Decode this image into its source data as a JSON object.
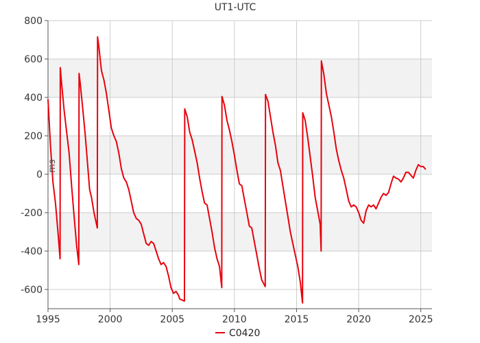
{
  "chart_data": {
    "type": "line",
    "title": "UT1-UTC",
    "ylabel": "ms",
    "xlabel": "",
    "xlim": [
      1995,
      2025.9
    ],
    "ylim": [
      -700,
      800
    ],
    "xticks": [
      1995,
      2000,
      2005,
      2010,
      2015,
      2020,
      2025
    ],
    "yticks": [
      -600,
      -400,
      -200,
      0,
      200,
      400,
      600,
      800
    ],
    "xtick_labels": [
      "1995",
      "2000",
      "2005",
      "2010",
      "2015",
      "2020",
      "2025"
    ],
    "ytick_labels": [
      "-600",
      "-400",
      "-200",
      "0",
      "200",
      "400",
      "600",
      "800"
    ],
    "grid": true,
    "shaded_bands": [
      [
        400,
        600
      ],
      [
        0,
        200
      ],
      [
        -400,
        -200
      ]
    ],
    "legend_position": "bottom-center",
    "colors": {
      "series": "#e8000b",
      "band": "#f2f2f2",
      "grid": "#cccccc",
      "axis": "#555555"
    },
    "series": [
      {
        "name": "C0420",
        "points": [
          [
            1995.0,
            390
          ],
          [
            1995.2,
            150
          ],
          [
            1995.4,
            -40
          ],
          [
            1995.6,
            -150
          ],
          [
            1995.8,
            -300
          ],
          [
            1995.97,
            -440
          ],
          [
            1995.99,
            555
          ],
          [
            1996.1,
            470
          ],
          [
            1996.3,
            330
          ],
          [
            1996.5,
            220
          ],
          [
            1996.7,
            110
          ],
          [
            1996.9,
            -60
          ],
          [
            1997.1,
            -220
          ],
          [
            1997.3,
            -370
          ],
          [
            1997.48,
            -470
          ],
          [
            1997.5,
            525
          ],
          [
            1997.6,
            470
          ],
          [
            1997.8,
            340
          ],
          [
            1998.0,
            200
          ],
          [
            1998.2,
            40
          ],
          [
            1998.35,
            -80
          ],
          [
            1998.5,
            -120
          ],
          [
            1998.7,
            -200
          ],
          [
            1998.97,
            -280
          ],
          [
            1998.99,
            715
          ],
          [
            1999.1,
            660
          ],
          [
            1999.3,
            540
          ],
          [
            1999.5,
            490
          ],
          [
            1999.7,
            420
          ],
          [
            1999.9,
            330
          ],
          [
            2000.1,
            240
          ],
          [
            2000.3,
            200
          ],
          [
            2000.5,
            170
          ],
          [
            2000.7,
            110
          ],
          [
            2000.9,
            30
          ],
          [
            2001.1,
            -20
          ],
          [
            2001.3,
            -40
          ],
          [
            2001.5,
            -80
          ],
          [
            2001.7,
            -140
          ],
          [
            2001.9,
            -200
          ],
          [
            2002.1,
            -230
          ],
          [
            2002.3,
            -240
          ],
          [
            2002.5,
            -260
          ],
          [
            2002.7,
            -310
          ],
          [
            2002.9,
            -360
          ],
          [
            2003.1,
            -370
          ],
          [
            2003.3,
            -350
          ],
          [
            2003.5,
            -360
          ],
          [
            2003.7,
            -400
          ],
          [
            2003.9,
            -440
          ],
          [
            2004.1,
            -470
          ],
          [
            2004.3,
            -460
          ],
          [
            2004.5,
            -480
          ],
          [
            2004.7,
            -530
          ],
          [
            2004.9,
            -590
          ],
          [
            2005.1,
            -620
          ],
          [
            2005.3,
            -610
          ],
          [
            2005.5,
            -630
          ],
          [
            2005.6,
            -650
          ],
          [
            2005.98,
            -660
          ],
          [
            2006.0,
            340
          ],
          [
            2006.2,
            300
          ],
          [
            2006.4,
            220
          ],
          [
            2006.6,
            180
          ],
          [
            2006.8,
            120
          ],
          [
            2007.0,
            60
          ],
          [
            2007.2,
            -20
          ],
          [
            2007.4,
            -90
          ],
          [
            2007.6,
            -150
          ],
          [
            2007.8,
            -160
          ],
          [
            2008.0,
            -230
          ],
          [
            2008.2,
            -300
          ],
          [
            2008.4,
            -380
          ],
          [
            2008.6,
            -440
          ],
          [
            2008.8,
            -480
          ],
          [
            2008.98,
            -590
          ],
          [
            2009.0,
            405
          ],
          [
            2009.2,
            360
          ],
          [
            2009.4,
            280
          ],
          [
            2009.6,
            230
          ],
          [
            2009.8,
            170
          ],
          [
            2010.0,
            100
          ],
          [
            2010.2,
            20
          ],
          [
            2010.4,
            -50
          ],
          [
            2010.6,
            -60
          ],
          [
            2010.8,
            -130
          ],
          [
            2011.0,
            -200
          ],
          [
            2011.2,
            -270
          ],
          [
            2011.4,
            -280
          ],
          [
            2011.6,
            -350
          ],
          [
            2011.8,
            -420
          ],
          [
            2012.0,
            -490
          ],
          [
            2012.2,
            -550
          ],
          [
            2012.48,
            -585
          ],
          [
            2012.5,
            415
          ],
          [
            2012.7,
            380
          ],
          [
            2012.9,
            300
          ],
          [
            2013.1,
            220
          ],
          [
            2013.3,
            150
          ],
          [
            2013.5,
            60
          ],
          [
            2013.7,
            20
          ],
          [
            2013.9,
            -60
          ],
          [
            2014.1,
            -140
          ],
          [
            2014.3,
            -220
          ],
          [
            2014.5,
            -300
          ],
          [
            2014.7,
            -360
          ],
          [
            2014.9,
            -420
          ],
          [
            2015.1,
            -480
          ],
          [
            2015.3,
            -560
          ],
          [
            2015.48,
            -670
          ],
          [
            2015.5,
            320
          ],
          [
            2015.7,
            280
          ],
          [
            2015.9,
            190
          ],
          [
            2016.1,
            90
          ],
          [
            2016.3,
            -10
          ],
          [
            2016.5,
            -120
          ],
          [
            2016.7,
            -190
          ],
          [
            2016.9,
            -260
          ],
          [
            2016.98,
            -400
          ],
          [
            2017.0,
            590
          ],
          [
            2017.2,
            520
          ],
          [
            2017.4,
            420
          ],
          [
            2017.6,
            360
          ],
          [
            2017.8,
            300
          ],
          [
            2018.0,
            220
          ],
          [
            2018.2,
            130
          ],
          [
            2018.4,
            70
          ],
          [
            2018.6,
            20
          ],
          [
            2018.8,
            -20
          ],
          [
            2019.0,
            -80
          ],
          [
            2019.2,
            -140
          ],
          [
            2019.4,
            -170
          ],
          [
            2019.6,
            -160
          ],
          [
            2019.8,
            -170
          ],
          [
            2020.0,
            -200
          ],
          [
            2020.2,
            -240
          ],
          [
            2020.4,
            -255
          ],
          [
            2020.6,
            -190
          ],
          [
            2020.8,
            -160
          ],
          [
            2021.0,
            -170
          ],
          [
            2021.2,
            -160
          ],
          [
            2021.4,
            -180
          ],
          [
            2021.6,
            -150
          ],
          [
            2021.8,
            -120
          ],
          [
            2022.0,
            -100
          ],
          [
            2022.2,
            -110
          ],
          [
            2022.4,
            -95
          ],
          [
            2022.6,
            -50
          ],
          [
            2022.8,
            -10
          ],
          [
            2023.0,
            -20
          ],
          [
            2023.2,
            -25
          ],
          [
            2023.4,
            -40
          ],
          [
            2023.6,
            -20
          ],
          [
            2023.8,
            10
          ],
          [
            2024.0,
            10
          ],
          [
            2024.2,
            -5
          ],
          [
            2024.4,
            -20
          ],
          [
            2024.6,
            20
          ],
          [
            2024.8,
            50
          ],
          [
            2025.0,
            40
          ],
          [
            2025.2,
            40
          ],
          [
            2025.4,
            25
          ]
        ]
      }
    ]
  }
}
